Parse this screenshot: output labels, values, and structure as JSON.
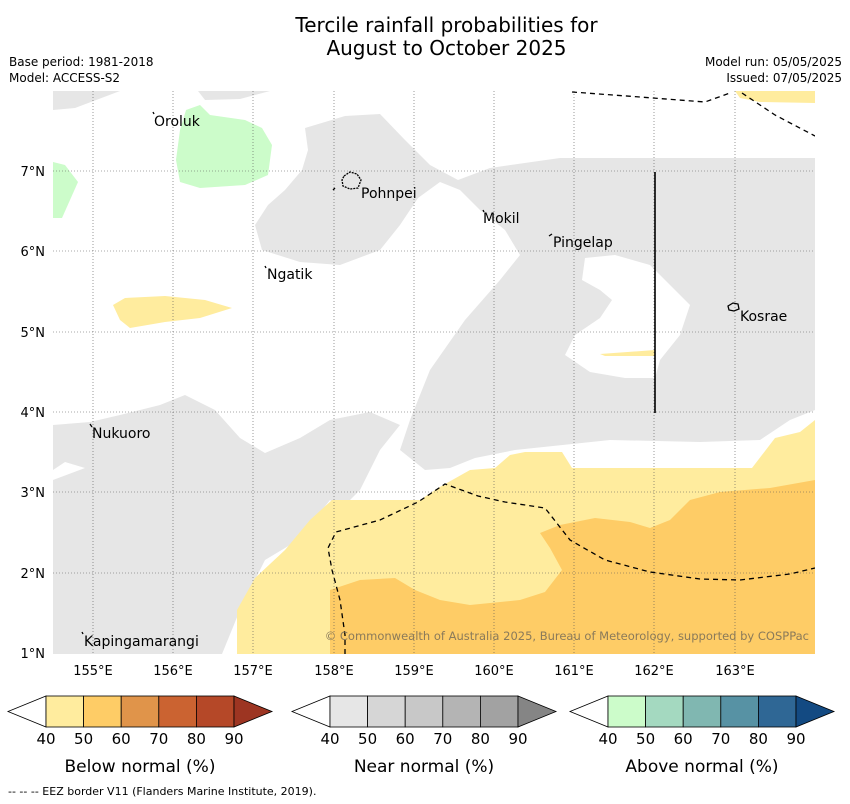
{
  "title_line1": "Tercile rainfall probabilities for",
  "title_line2": "August to October 2025",
  "meta_left": [
    "Base period: 1981-2018",
    "Model: ACCESS-S2"
  ],
  "meta_right": [
    "Model run: 05/05/2025",
    "Issued: 07/05/2025"
  ],
  "map": {
    "lon_ticks": [
      "155°E",
      "156°E",
      "157°E",
      "158°E",
      "159°E",
      "160°E",
      "161°E",
      "162°E",
      "163°E"
    ],
    "lat_ticks": [
      "1°N",
      "2°N",
      "3°N",
      "4°N",
      "5°N",
      "6°N",
      "7°N"
    ],
    "places": [
      {
        "name": "Oroluk"
      },
      {
        "name": "Pohnpei"
      },
      {
        "name": "Mokil"
      },
      {
        "name": "Pingelap"
      },
      {
        "name": "Ngatik"
      },
      {
        "name": "Kosrae"
      },
      {
        "name": "Nukuoro"
      },
      {
        "name": "Kapingamarangi"
      }
    ],
    "copyright": "© Commonwealth of Australia 2025, Bureau of Meteorology, supported by COSPPac"
  },
  "legends": [
    {
      "label": "Below normal (%)",
      "ticks": [
        "40",
        "50",
        "60",
        "70",
        "80",
        "90"
      ],
      "colors": [
        "#ffffff",
        "#ffec9e",
        "#fecc66",
        "#e0944a",
        "#cb6331",
        "#b54828",
        "#9d3522"
      ]
    },
    {
      "label": "Near normal (%)",
      "ticks": [
        "40",
        "50",
        "60",
        "70",
        "80",
        "90"
      ],
      "colors": [
        "#ffffff",
        "#e6e6e6",
        "#d6d6d6",
        "#c8c8c8",
        "#b4b4b4",
        "#a2a2a2",
        "#858585"
      ]
    },
    {
      "label": "Above normal (%)",
      "ticks": [
        "40",
        "50",
        "60",
        "70",
        "80",
        "90"
      ],
      "colors": [
        "#ffffff",
        "#ccfcca",
        "#a4d9c0",
        "#80b7b1",
        "#5792a4",
        "#2f6795",
        "#134a82"
      ]
    }
  ],
  "footnote": "--  --  -- EEZ border V11 (Flanders Marine Institute, 2019)."
}
